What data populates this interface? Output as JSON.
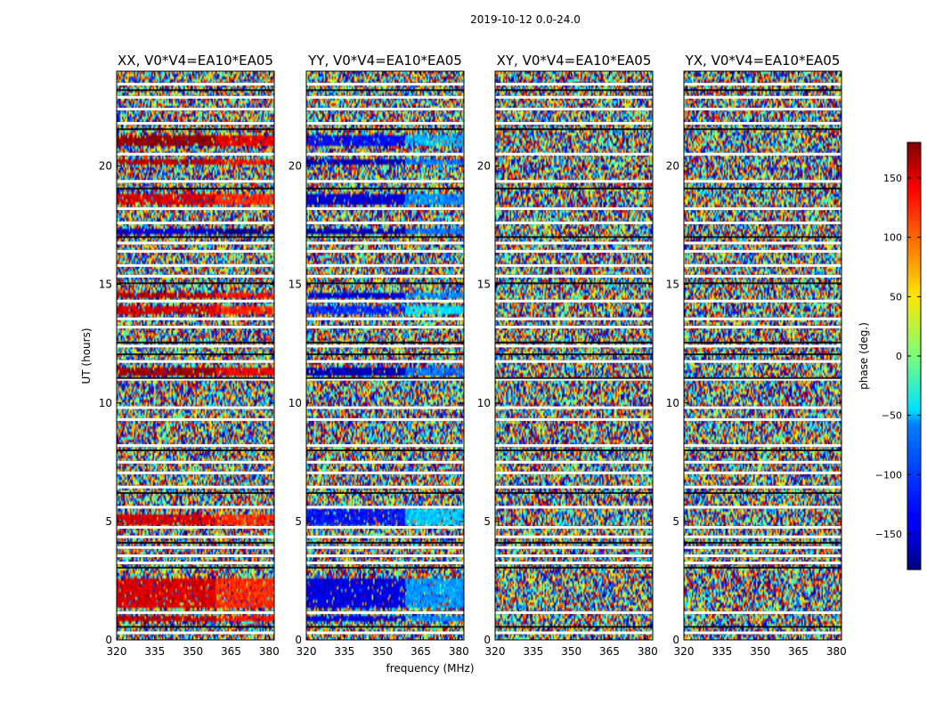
{
  "figure_title": "2019-10-12 0.0-24.0",
  "chart_data": {
    "type": "heatmap",
    "suptitle": "2019-10-12 0.0-24.0",
    "xlabel": "frequency (MHz)",
    "ylabel": "UT (hours)",
    "xlim": [
      320,
      382
    ],
    "ylim": [
      0,
      24
    ],
    "x_ticks": [
      320,
      335,
      350,
      365,
      380
    ],
    "y_ticks": [
      0,
      5,
      10,
      15,
      20
    ],
    "colorbar": {
      "label": "phase (deg.)",
      "colormap": "jet",
      "range": [
        -180,
        180
      ],
      "ticks": [
        150,
        100,
        50,
        0,
        -50,
        -100,
        -150
      ]
    },
    "panels": [
      {
        "title": "XX, V0*V4=EA10*EA05",
        "pattern": "coherent-red",
        "coherent_bands": [
          {
            "t": [
              0.8,
              1.0
            ],
            "phase": 160
          },
          {
            "t": [
              1.3,
              2.6
            ],
            "phase": 150
          },
          {
            "t": [
              4.9,
              5.3
            ],
            "phase": 150
          },
          {
            "t": [
              11.2,
              11.5
            ],
            "phase": 170
          },
          {
            "t": [
              13.8,
              14.1
            ],
            "phase": 150
          },
          {
            "t": [
              14.4,
              14.7
            ],
            "phase": 160
          },
          {
            "t": [
              17.1,
              17.4
            ],
            "phase": -150
          },
          {
            "t": [
              18.4,
              18.8
            ],
            "phase": 150
          },
          {
            "t": [
              20.1,
              20.3
            ],
            "phase": 160
          },
          {
            "t": [
              20.8,
              21.3
            ],
            "phase": 175
          }
        ]
      },
      {
        "title": "YY, V0*V4=EA10*EA05",
        "pattern": "coherent-blue",
        "coherent_bands": [
          {
            "t": [
              0.8,
              1.0
            ],
            "phase": -150
          },
          {
            "t": [
              1.3,
              2.6
            ],
            "phase": -145
          },
          {
            "t": [
              4.9,
              5.5
            ],
            "phase": -130
          },
          {
            "t": [
              11.2,
              11.5
            ],
            "phase": -160
          },
          {
            "t": [
              13.8,
              14.1
            ],
            "phase": -120
          },
          {
            "t": [
              14.4,
              14.7
            ],
            "phase": -150
          },
          {
            "t": [
              17.1,
              17.4
            ],
            "phase": -160
          },
          {
            "t": [
              18.4,
              18.8
            ],
            "phase": -150
          },
          {
            "t": [
              20.1,
              20.3
            ],
            "phase": -160
          },
          {
            "t": [
              20.8,
              21.3
            ],
            "phase": -135
          }
        ]
      },
      {
        "title": "XY, V0*V4=EA10*EA05",
        "pattern": "noise",
        "coherent_bands": []
      },
      {
        "title": "YX, V0*V4=EA10*EA05",
        "pattern": "noise",
        "coherent_bands": []
      }
    ],
    "gaps_hours": [
      0.3,
      1.15,
      3.25,
      3.55,
      3.9,
      4.35,
      4.75,
      5.6,
      6.45,
      7.05,
      7.5,
      8.2,
      9.3,
      9.8,
      11.0,
      11.75,
      12.4,
      13.2,
      13.55,
      14.3,
      15.35,
      15.8,
      16.4,
      16.75,
      17.6,
      18.2,
      19.35,
      20.5,
      21.8,
      22.4,
      22.9,
      23.45
    ],
    "grid": false,
    "legend": "none"
  }
}
